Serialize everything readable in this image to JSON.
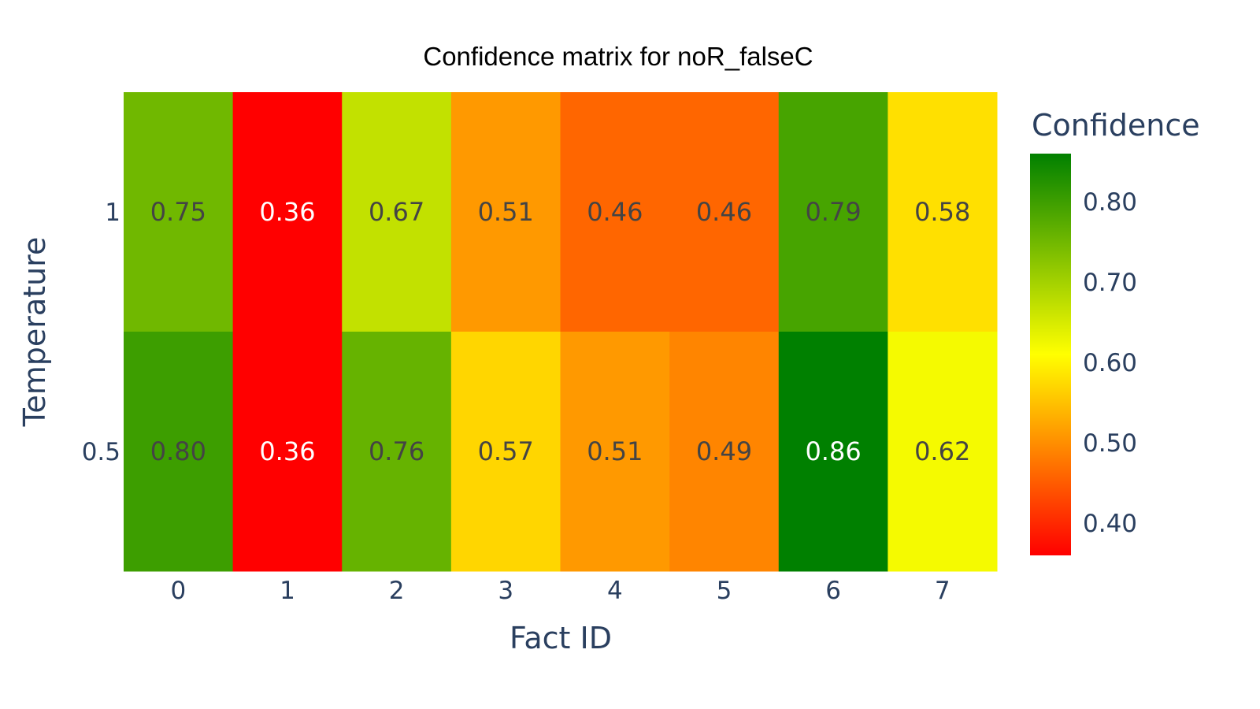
{
  "chart_data": {
    "type": "heatmap",
    "title": "Confidence matrix for noR_falseC",
    "xlabel": "Fact ID",
    "ylabel": "Temperature",
    "x": [
      "0",
      "1",
      "2",
      "3",
      "4",
      "5",
      "6",
      "7"
    ],
    "y": [
      "1",
      "0.5"
    ],
    "z": [
      [
        0.75,
        0.36,
        0.67,
        0.51,
        0.46,
        0.46,
        0.79,
        0.58
      ],
      [
        0.8,
        0.36,
        0.76,
        0.57,
        0.51,
        0.49,
        0.86,
        0.62
      ]
    ],
    "cell_labels": [
      [
        "0.75",
        "0.36",
        "0.67",
        "0.51",
        "0.46",
        "0.46",
        "0.79",
        "0.58"
      ],
      [
        "0.80",
        "0.36",
        "0.76",
        "0.57",
        "0.51",
        "0.49",
        "0.86",
        "0.62"
      ]
    ],
    "colorbar": {
      "title": "Confidence",
      "range": [
        0.36,
        0.86
      ],
      "ticks": [
        0.4,
        0.5,
        0.6,
        0.7,
        0.8
      ],
      "tick_labels": [
        "0.40",
        "0.50",
        "0.60",
        "0.70",
        "0.80"
      ]
    },
    "colorscale": [
      "#ff0000",
      "#ffff00",
      "#008000"
    ]
  }
}
